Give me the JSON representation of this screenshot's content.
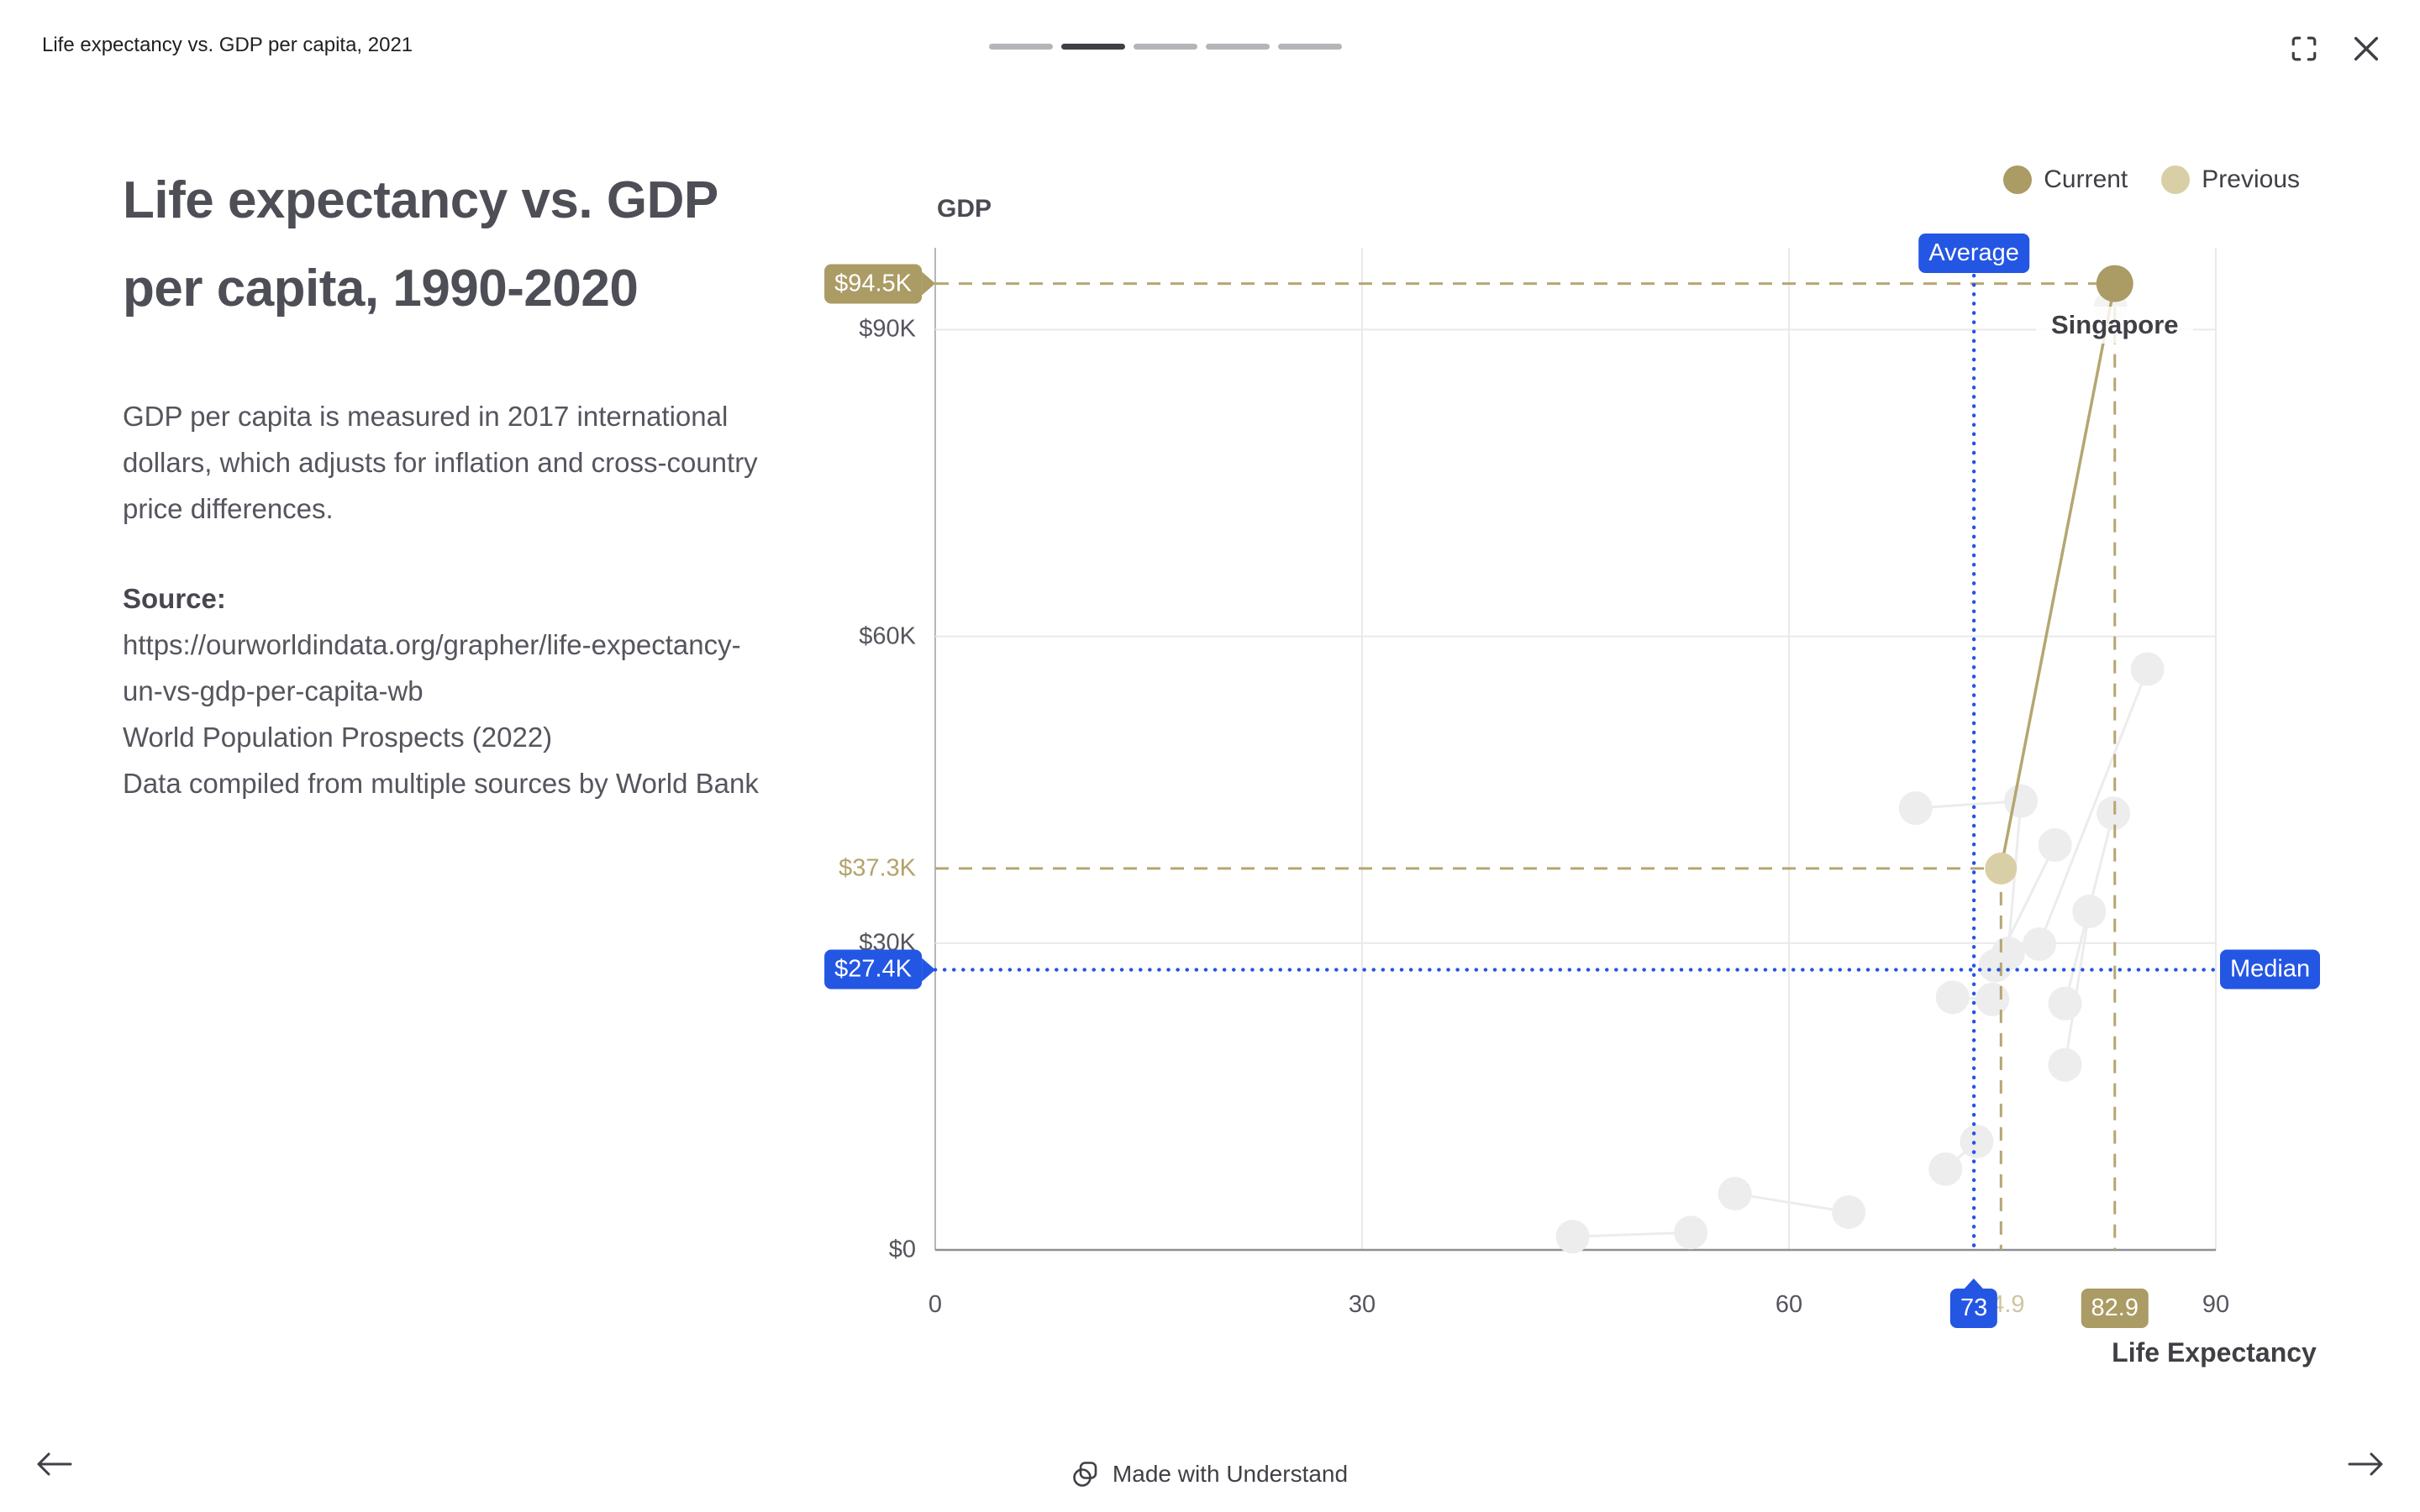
{
  "header": {
    "title": "Life expectancy vs. GDP per capita, 2021",
    "progress": {
      "total": 5,
      "active_index": 1
    }
  },
  "panel": {
    "title": "Life expectancy vs. GDP per capita, 1990-2020",
    "description": "GDP per capita is measured in 2017 international dollars, which adjusts for inflation and cross-country price differences.",
    "source_label": "Source:",
    "source_lines": [
      "https://ourworldindata.org/grapher/life-expectancy-un-vs-gdp-per-capita-wb",
      "World Population Prospects (2022)",
      "Data compiled from multiple sources by World Bank"
    ]
  },
  "footer": {
    "made_with": "Made with Understand"
  },
  "colors": {
    "blue": "#2456e4",
    "gold": "#ab9b64",
    "gold_light": "#d9cfa6",
    "gold_line": "#b5a671",
    "gray_dot": "#ededee",
    "ghost_dot": "#f3f3f4",
    "link_line": "#ececee",
    "grid": "#e9e9e9",
    "axis_dark": "#8f8f94",
    "axis_y": "#b6b6ba"
  },
  "chart_data": {
    "type": "scatter",
    "title": "Life expectancy vs. GDP per capita, 1990-2020",
    "x_axis": {
      "label": "Life Expectancy",
      "ticks": [
        0,
        30,
        60,
        90
      ],
      "min": 0,
      "max": 90
    },
    "y_axis": {
      "label": "GDP",
      "ticks": [
        "$0",
        "$30K",
        "$60K",
        "$90K"
      ],
      "tick_values_k": [
        0,
        30,
        60,
        90
      ],
      "max_k": 98
    },
    "legend": [
      {
        "label": "Current",
        "color": "#ab9b64"
      },
      {
        "label": "Previous",
        "color": "#d9cfa6"
      }
    ],
    "annotations": {
      "average_x": {
        "value": 73,
        "label": "Average",
        "badge": "73"
      },
      "median_y": {
        "value_k": 27.4,
        "label": "Median",
        "badge": "$27.4K"
      },
      "current": {
        "x": 82.9,
        "gdp_k": 94.5,
        "x_badge": "82.9",
        "y_badge": "$94.5K",
        "point_label": "Singapore"
      },
      "previous": {
        "x": 74.9,
        "gdp_k": 37.3,
        "x_label": "74.9",
        "y_label": "$37.3K"
      }
    },
    "series": [
      {
        "name": "Current",
        "color": "#ab9b64",
        "points": [
          {
            "x": 82.9,
            "gdp_k": 94.5,
            "label": "Singapore"
          }
        ]
      },
      {
        "name": "Previous",
        "color": "#d9cfa6",
        "points": [
          {
            "x": 74.9,
            "gdp_k": 37.3
          }
        ]
      }
    ],
    "background_points": [
      {
        "x": 44.8,
        "gdp_k": 1.3
      },
      {
        "x": 53.1,
        "gdp_k": 1.7
      },
      {
        "x": 56.2,
        "gdp_k": 5.5
      },
      {
        "x": 64.2,
        "gdp_k": 3.7
      },
      {
        "x": 71.0,
        "gdp_k": 7.9
      },
      {
        "x": 73.2,
        "gdp_k": 10.6
      },
      {
        "x": 71.5,
        "gdp_k": 24.7
      },
      {
        "x": 74.3,
        "gdp_k": 24.5
      },
      {
        "x": 74.5,
        "gdp_k": 27.8
      },
      {
        "x": 75.4,
        "gdp_k": 29.0
      },
      {
        "x": 77.6,
        "gdp_k": 29.9
      },
      {
        "x": 79.4,
        "gdp_k": 24.1
      },
      {
        "x": 79.4,
        "gdp_k": 18.1
      },
      {
        "x": 81.1,
        "gdp_k": 33.1
      },
      {
        "x": 68.9,
        "gdp_k": 43.2
      },
      {
        "x": 76.3,
        "gdp_k": 43.9
      },
      {
        "x": 78.7,
        "gdp_k": 39.6
      },
      {
        "x": 82.8,
        "gdp_k": 42.7
      },
      {
        "x": 85.2,
        "gdp_k": 56.8
      },
      {
        "x": 82.6,
        "gdp_k": 92.2,
        "ghost": true
      }
    ],
    "background_links": [
      [
        0,
        1
      ],
      [
        2,
        3
      ],
      [
        4,
        5
      ],
      [
        6,
        7
      ],
      [
        8,
        16
      ],
      [
        9,
        15
      ],
      [
        14,
        15
      ],
      [
        12,
        13
      ],
      [
        11,
        17
      ],
      [
        10,
        18
      ]
    ]
  }
}
